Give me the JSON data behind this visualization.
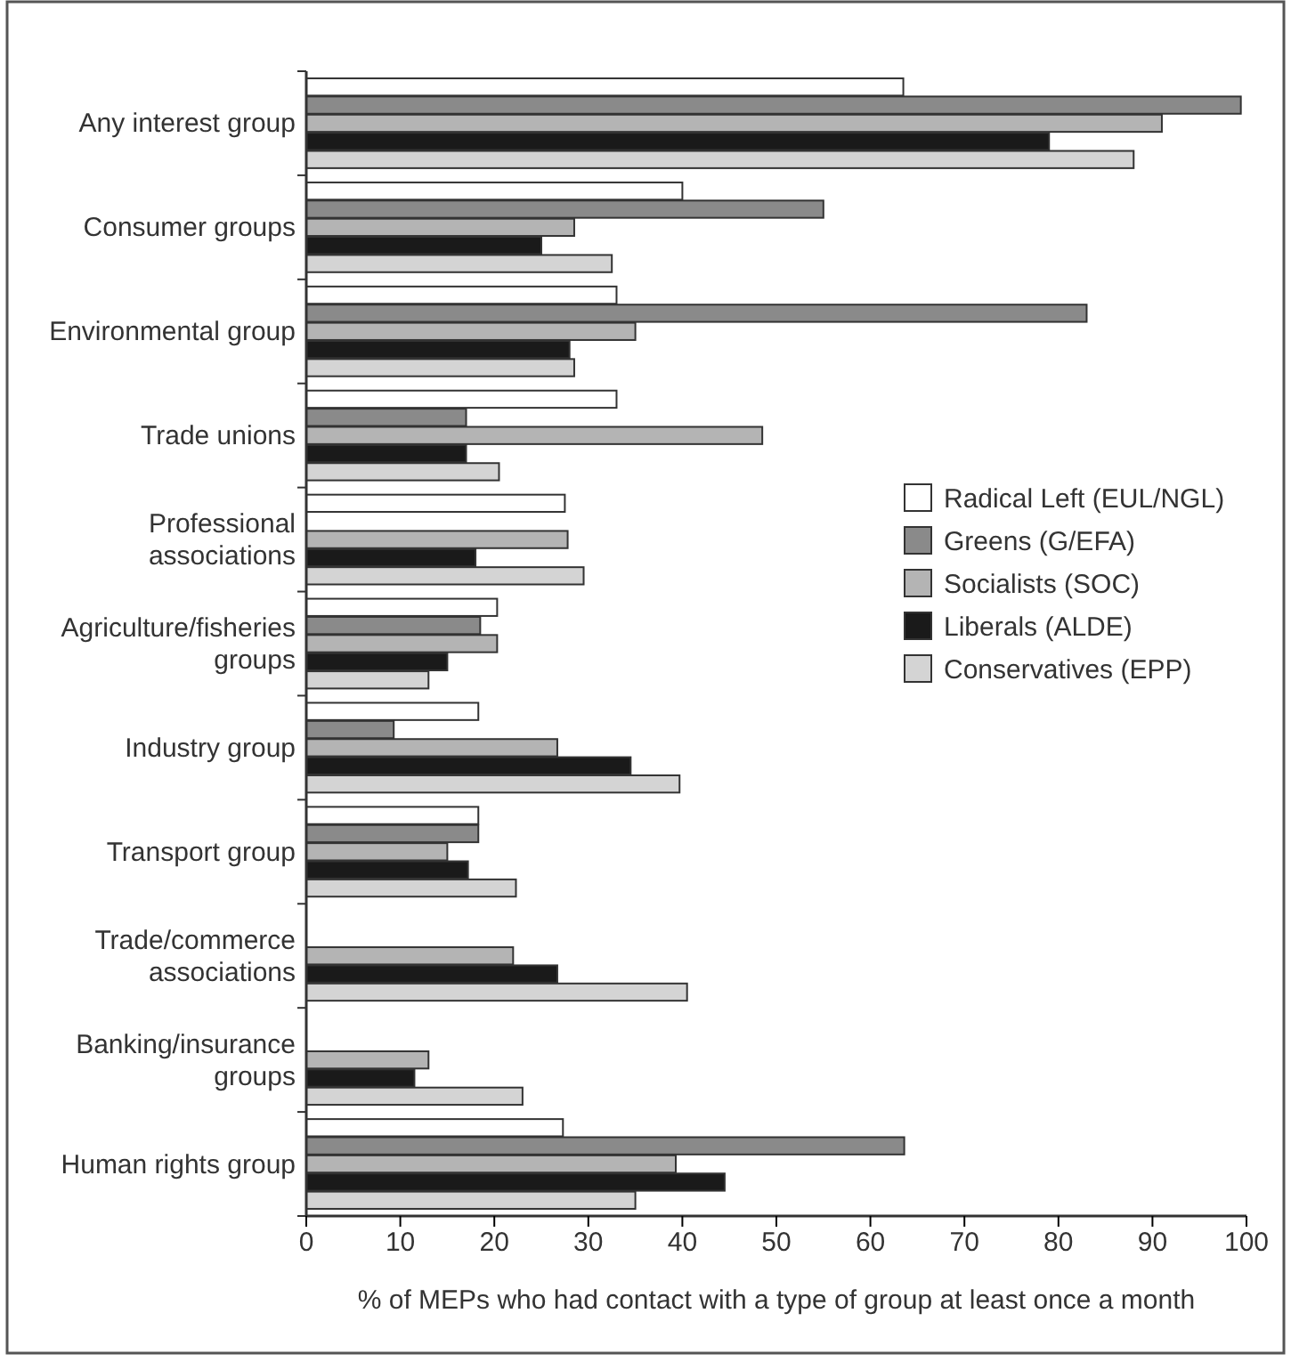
{
  "chart_data": {
    "type": "bar",
    "orientation": "horizontal",
    "xlabel": "% of MEPs who had contact with a type of group at least once a month",
    "categories": [
      "Any interest group",
      "Consumer groups",
      "Environmental group",
      "Trade unions",
      "Professional associations",
      "Agriculture/fisheries groups",
      "Industry group",
      "Transport group",
      "Trade/commerce associations",
      "Banking/insurance groups",
      "Human rights group"
    ],
    "series": [
      {
        "name": "Radical Left (EUL/NGL)",
        "color": "#ffffff",
        "values": [
          63.5,
          40,
          33,
          33,
          27.5,
          20.3,
          18.3,
          18.3,
          null,
          null,
          27.3
        ]
      },
      {
        "name": "Greens (G/EFA)",
        "color": "#8a8a8a",
        "values": [
          99.4,
          55,
          83,
          17,
          null,
          18.5,
          9.3,
          18.3,
          null,
          null,
          63.6
        ]
      },
      {
        "name": "Socialists (SOC)",
        "color": "#b4b4b4",
        "values": [
          91,
          28.5,
          35,
          48.5,
          27.8,
          20.3,
          26.7,
          15,
          22,
          13,
          39.3
        ]
      },
      {
        "name": "Liberals (ALDE)",
        "color": "#1a1a1a",
        "values": [
          79,
          25,
          28,
          17,
          18,
          15,
          34.5,
          17.2,
          26.7,
          11.5,
          44.5
        ]
      },
      {
        "name": "Conservatives (EPP)",
        "color": "#d4d4d4",
        "values": [
          88,
          32.5,
          28.5,
          20.5,
          29.5,
          13,
          39.7,
          22.3,
          40.5,
          23,
          35
        ]
      }
    ],
    "xlim": [
      0,
      100
    ],
    "xticks": [
      0,
      10,
      20,
      30,
      40,
      50,
      60,
      70,
      80,
      90,
      100
    ],
    "legend": "right",
    "grid": false
  }
}
